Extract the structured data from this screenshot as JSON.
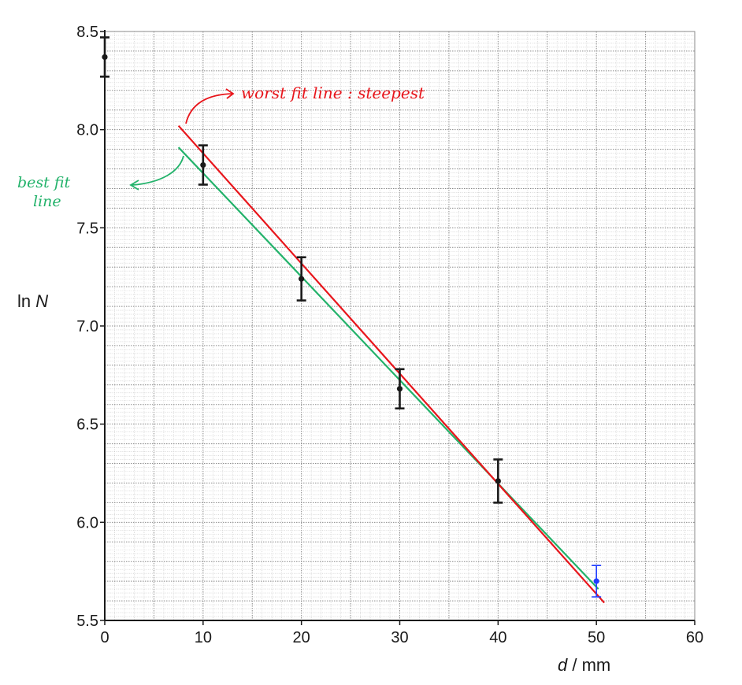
{
  "chart_data": {
    "type": "scatter",
    "xlabel": {
      "var": "d",
      "sep": " / ",
      "unit": "mm"
    },
    "ylabel": {
      "prefix": "ln ",
      "var": "N"
    },
    "xlim": [
      0,
      60
    ],
    "ylim": [
      5.5,
      8.5
    ],
    "x_ticks": [
      0,
      10,
      20,
      30,
      40,
      50,
      60
    ],
    "x_tick_labels": [
      "0",
      "10",
      "20",
      "30",
      "40",
      "50",
      "60"
    ],
    "y_ticks": [
      5.5,
      6.0,
      6.5,
      7.0,
      7.5,
      8.0,
      8.5
    ],
    "y_tick_labels": [
      "5.5",
      "6.0",
      "6.5",
      "7.0",
      "7.5",
      "8.0",
      "8.5"
    ],
    "grid": true,
    "points": [
      {
        "x": 0,
        "y": 8.37,
        "err": 0.1,
        "color": "#1a1a1a"
      },
      {
        "x": 10,
        "y": 7.82,
        "err": 0.1,
        "color": "#1a1a1a"
      },
      {
        "x": 20,
        "y": 7.24,
        "err": 0.11,
        "color": "#1a1a1a"
      },
      {
        "x": 30,
        "y": 6.68,
        "err": 0.1,
        "color": "#1a1a1a"
      },
      {
        "x": 40,
        "y": 6.21,
        "err": 0.11,
        "color": "#1a1a1a"
      },
      {
        "x": 50,
        "y": 5.7,
        "err": 0.08,
        "color": "#1f3dff"
      }
    ],
    "lines": [
      {
        "name": "best fit line",
        "color": "#22b26a",
        "x": [
          7.5,
          50.2
        ],
        "y": [
          7.91,
          5.66
        ]
      },
      {
        "name": "worst fit line : steepest",
        "color": "#e8151b",
        "x": [
          7.5,
          50.8
        ],
        "y": [
          8.02,
          5.59
        ]
      }
    ],
    "annotations": [
      {
        "text": "worst fit line : steepest",
        "color": "#e8151b"
      },
      {
        "text_lines": [
          "best fit",
          "line"
        ],
        "color": "#22b26a"
      }
    ]
  }
}
